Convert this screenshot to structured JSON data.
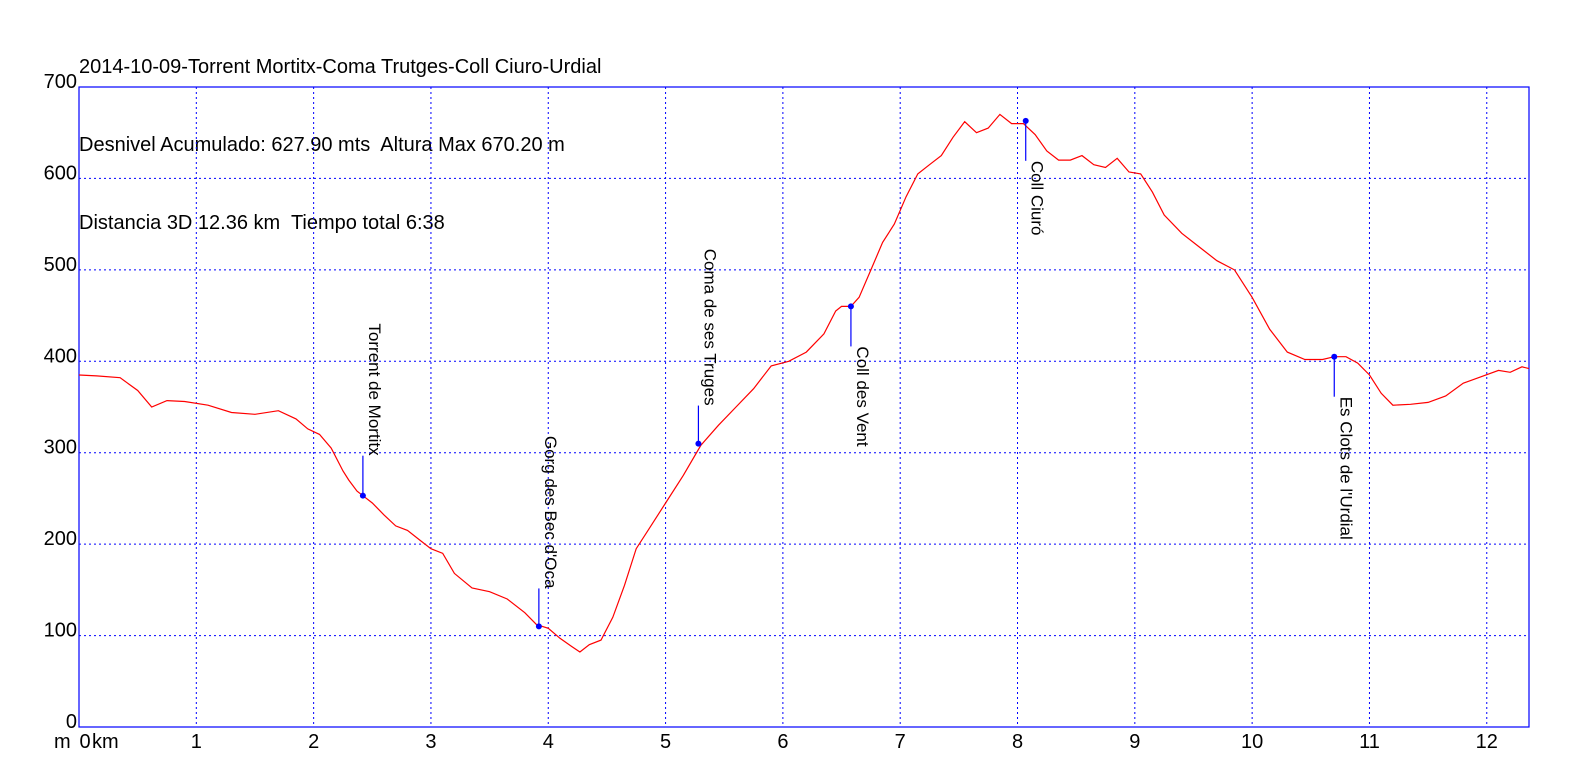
{
  "chart_data": {
    "type": "line",
    "title_lines": [
      "2014-10-09-Torrent Mortitx-Coma Trutges-Coll Ciuro-Urdial",
      "Desnivel Acumulado: 627.90 mts  Altura Max 670.20 m",
      "Distancia 3D 12.36 km  Tiempo total 6:38"
    ],
    "y_unit": "m",
    "x_unit": "km",
    "xlim": [
      0,
      12.36
    ],
    "ylim": [
      0,
      700
    ],
    "x_ticks": [
      0,
      1,
      2,
      3,
      4,
      5,
      6,
      7,
      8,
      9,
      10,
      11,
      12
    ],
    "y_ticks": [
      0,
      100,
      200,
      300,
      400,
      500,
      600,
      700
    ],
    "grid": true,
    "colors": {
      "line": "#ff0000",
      "grid": "#0000ff",
      "frame": "#0000ff",
      "waypoint": "#0000ff"
    },
    "series": [
      {
        "x": [
          0,
          0.15,
          0.35,
          0.5,
          0.62,
          0.75,
          0.9,
          1.1,
          1.3,
          1.5,
          1.7,
          1.85,
          1.95,
          2.05,
          2.15,
          2.25,
          2.3,
          2.37,
          2.42,
          2.5,
          2.6,
          2.7,
          2.8,
          2.9,
          3.0,
          3.1,
          3.2,
          3.35,
          3.5,
          3.65,
          3.8,
          3.9,
          4.0,
          4.1,
          4.2,
          4.27,
          4.35,
          4.45,
          4.55,
          4.65,
          4.75,
          4.85,
          5.0,
          5.15,
          5.3,
          5.45,
          5.6,
          5.75,
          5.9,
          6.05,
          6.2,
          6.35,
          6.45,
          6.5,
          6.58,
          6.65,
          6.75,
          6.85,
          6.95,
          7.05,
          7.15,
          7.25,
          7.35,
          7.45,
          7.55,
          7.65,
          7.75,
          7.85,
          7.95,
          8.05,
          8.15,
          8.25,
          8.35,
          8.45,
          8.55,
          8.65,
          8.75,
          8.85,
          8.95,
          9.05,
          9.15,
          9.25,
          9.4,
          9.55,
          9.7,
          9.85,
          10.0,
          10.15,
          10.3,
          10.45,
          10.6,
          10.7,
          10.8,
          10.9,
          11.0,
          11.1,
          11.2,
          11.35,
          11.5,
          11.65,
          11.8,
          11.95,
          12.1,
          12.2,
          12.3,
          12.36
        ],
        "y": [
          385,
          384,
          382,
          368,
          350,
          357,
          356,
          352,
          344,
          342,
          346,
          337,
          326,
          320,
          305,
          280,
          270,
          258,
          253,
          245,
          232,
          220,
          215,
          205,
          195,
          190,
          168,
          152,
          148,
          140,
          125,
          112,
          108,
          97,
          88,
          82,
          90,
          95,
          120,
          155,
          195,
          215,
          245,
          275,
          308,
          330,
          350,
          370,
          395,
          400,
          410,
          430,
          455,
          460,
          460,
          470,
          500,
          530,
          550,
          580,
          605,
          615,
          625,
          645,
          662,
          650,
          655,
          670,
          660,
          660,
          648,
          630,
          620,
          620,
          625,
          615,
          612,
          622,
          607,
          605,
          585,
          560,
          540,
          525,
          510,
          500,
          470,
          435,
          410,
          402,
          402,
          405,
          405,
          398,
          385,
          365,
          352,
          353,
          355,
          362,
          376,
          383,
          390,
          388,
          394,
          392
        ]
      }
    ],
    "waypoints": [
      {
        "name": "Torrent de Mortitx",
        "x": 2.42,
        "y": 253
      },
      {
        "name": "Gorg des Bec d'Oca",
        "x": 3.92,
        "y": 110
      },
      {
        "name": "Coma de ses Truges",
        "x": 5.28,
        "y": 310
      },
      {
        "name": "Coll des Vent",
        "x": 6.58,
        "y": 460
      },
      {
        "name": "Coll Ciuró",
        "x": 8.07,
        "y": 663
      },
      {
        "name": "Es Clots de l'Urdial",
        "x": 10.7,
        "y": 405
      }
    ]
  }
}
